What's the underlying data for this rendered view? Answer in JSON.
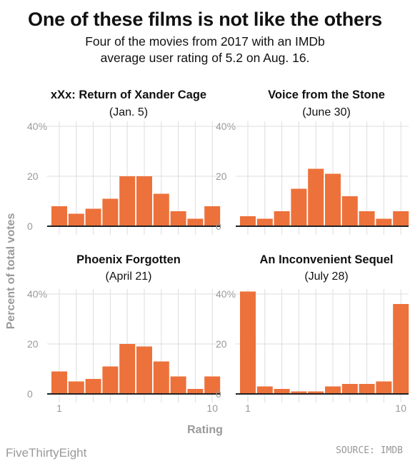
{
  "header": {
    "title": "One of these films is not like the others",
    "subtitle_line1": "Four of the movies from 2017 with an IMDb",
    "subtitle_line2": "average user rating of 5.2 on Aug. 16."
  },
  "footer": {
    "brand": "FiveThirtyEight",
    "source": "SOURCE: IMDB"
  },
  "colors": {
    "bar": "#ed713a",
    "grid": "#dddddd",
    "axis": "#222222",
    "muted": "#999999"
  },
  "chart_data": {
    "type": "bar",
    "xlabel": "Rating",
    "ylabel": "Percent of total votes",
    "categories": [
      "1",
      "2",
      "3",
      "4",
      "5",
      "6",
      "7",
      "8",
      "9",
      "10"
    ],
    "x_tick_labels": [
      "1",
      "10"
    ],
    "y_tick_labels": [
      "0",
      "20",
      "40%"
    ],
    "ylim": [
      0,
      42
    ],
    "grid": true,
    "panels": [
      {
        "title": "xXx: Return of Xander Cage",
        "subtitle": "(Jan. 5)",
        "values": [
          8,
          5,
          7,
          11,
          20,
          20,
          13,
          6,
          3,
          8
        ]
      },
      {
        "title": "Voice from the Stone",
        "subtitle": "(June 30)",
        "values": [
          4,
          3,
          6,
          15,
          23,
          21,
          12,
          6,
          3,
          6
        ]
      },
      {
        "title": "Phoenix Forgotten",
        "subtitle": "(April 21)",
        "values": [
          9,
          5,
          6,
          11,
          20,
          19,
          13,
          7,
          2,
          7
        ]
      },
      {
        "title": "An Inconvenient Sequel",
        "subtitle": "(July 28)",
        "values": [
          41,
          3,
          2,
          1,
          1,
          3,
          4,
          4,
          5,
          36
        ]
      }
    ]
  }
}
